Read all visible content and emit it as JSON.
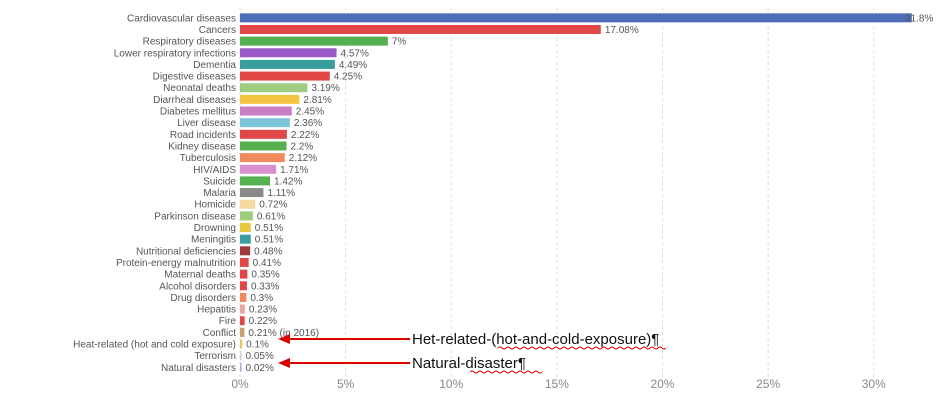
{
  "chart_data": {
    "type": "bar",
    "orientation": "horizontal",
    "categories": [
      "Cardiovascular diseases",
      "Cancers",
      "Respiratory diseases",
      "Lower respiratory infections",
      "Dementia",
      "Digestive diseases",
      "Neonatal deaths",
      "Diarrheal diseases",
      "Diabetes mellitus",
      "Liver disease",
      "Road incidents",
      "Kidney disease",
      "Tuberculosis",
      "HIV/AIDS",
      "Suicide",
      "Malaria",
      "Homicide",
      "Parkinson disease",
      "Drowning",
      "Meningitis",
      "Nutritional deficiencies",
      "Protein-energy malnutrition",
      "Maternal deaths",
      "Alcohol disorders",
      "Drug disorders",
      "Hepatitis",
      "Fire",
      "Conflict",
      "Heat-related (hot and cold exposure)",
      "Terrorism",
      "Natural disasters"
    ],
    "values": [
      31.8,
      17.08,
      7,
      4.57,
      4.49,
      4.25,
      3.19,
      2.81,
      2.45,
      2.36,
      2.22,
      2.2,
      2.12,
      1.71,
      1.42,
      1.11,
      0.72,
      0.61,
      0.51,
      0.51,
      0.48,
      0.41,
      0.35,
      0.33,
      0.3,
      0.23,
      0.22,
      0.21,
      0.1,
      0.05,
      0.02
    ],
    "value_labels": [
      "31.8%",
      "17.08%",
      "7%",
      "4.57%",
      "4.49%",
      "4.25%",
      "3.19%",
      "2.81%",
      "2.45%",
      "2.36%",
      "2.22%",
      "2.2%",
      "2.12%",
      "1.71%",
      "1.42%",
      "1.11%",
      "0.72%",
      "0.61%",
      "0.51%",
      "0.51%",
      "0.48%",
      "0.41%",
      "0.35%",
      "0.33%",
      "0.3%",
      "0.23%",
      "0.22%",
      "0.21% (in 2016)",
      "0.1%",
      "0.05%",
      "0.02%"
    ],
    "colors": [
      "#4c6fb8",
      "#e04848",
      "#56b050",
      "#9b59c8",
      "#3a9ea0",
      "#e04848",
      "#a0cc82",
      "#f4c542",
      "#c97ec4",
      "#7ec4d8",
      "#e04848",
      "#56b050",
      "#f08a5d",
      "#d98fd0",
      "#56b050",
      "#8a8a8a",
      "#f7d9a0",
      "#a0cc82",
      "#e8c840",
      "#3a9ea0",
      "#a03a3a",
      "#e04848",
      "#e04848",
      "#e04848",
      "#f08a5d",
      "#e8a8a0",
      "#e04848",
      "#c8a070",
      "#f0c060",
      "#d0d0d0",
      "#a0b0e0"
    ],
    "xlim": [
      0,
      32
    ],
    "xticks": [
      0,
      5,
      10,
      15,
      20,
      25,
      30
    ],
    "xtick_labels": [
      "0%",
      "5%",
      "10%",
      "15%",
      "20%",
      "25%",
      "30%"
    ],
    "grid": true,
    "annotations": [
      {
        "text": "Het-related-(hot-and-cold-exposure)¶",
        "target": "Heat-related (hot and cold exposure)"
      },
      {
        "text": "Natural-disaster¶",
        "target": "Natural disasters"
      }
    ]
  }
}
